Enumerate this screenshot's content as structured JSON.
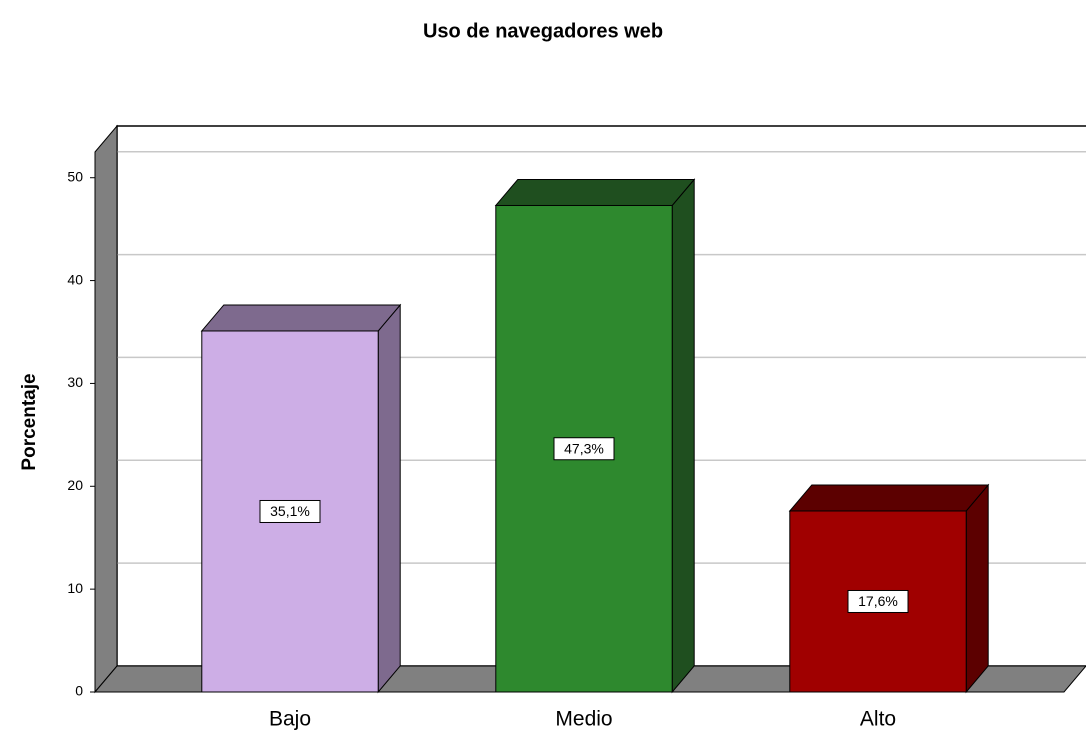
{
  "chart_data": {
    "type": "bar3d",
    "title": "Uso de navegadores web",
    "y_label": "Porcentaje",
    "categories": [
      "Bajo",
      "Medio",
      "Alto"
    ],
    "values": [
      35.1,
      47.3,
      17.6
    ],
    "value_labels": [
      "35,1%",
      "47,3%",
      "17,6%"
    ],
    "colors": [
      "#cdaee6",
      "#2e892e",
      "#a00000"
    ],
    "side_colors": [
      "#7e6a8e",
      "#1f4f1f",
      "#5c0000"
    ],
    "ylim": [
      0,
      52.5
    ],
    "yticks": [
      0,
      10,
      20,
      30,
      40,
      50
    ],
    "grid": true
  }
}
